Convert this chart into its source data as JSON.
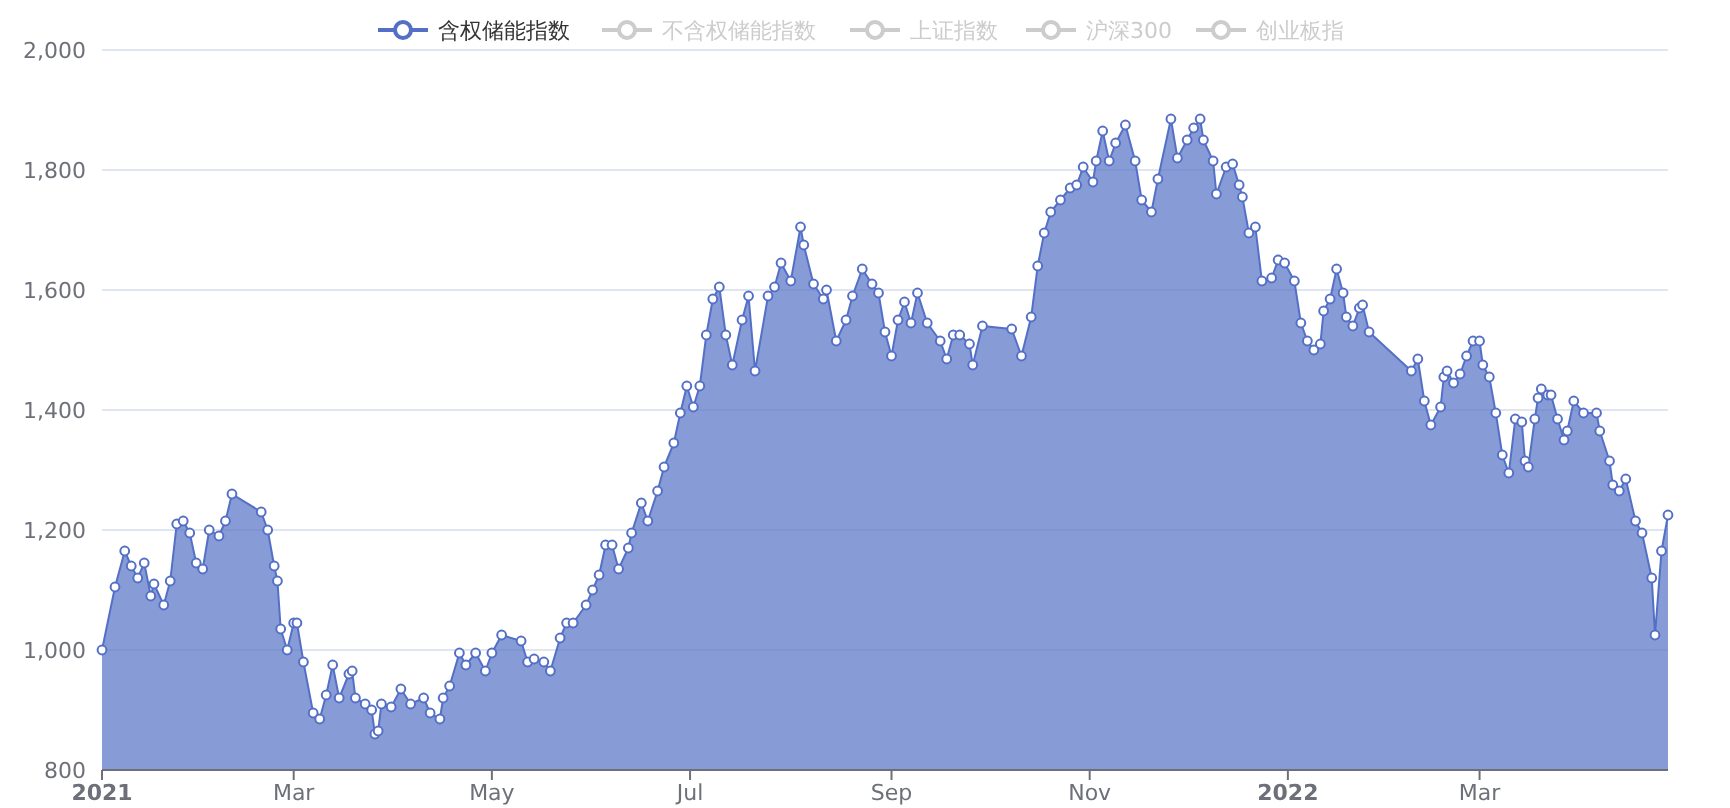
{
  "chart_data": {
    "type": "area",
    "legend": "top",
    "grid": "y",
    "marker": "circle",
    "line_style": "solid",
    "xlim": [
      "2021-01-01",
      "2022-04-28"
    ],
    "xticks": [
      {
        "value": "2021-01-01",
        "label": "2021"
      },
      {
        "value": "2021-03-01",
        "label": "Mar"
      },
      {
        "value": "2021-05-01",
        "label": "May"
      },
      {
        "value": "2021-07-01",
        "label": "Jul"
      },
      {
        "value": "2021-09-01",
        "label": "Sep"
      },
      {
        "value": "2021-11-01",
        "label": "Nov"
      },
      {
        "value": "2022-01-01",
        "label": "2022"
      },
      {
        "value": "2022-03-01",
        "label": "Mar"
      }
    ],
    "ylim": [
      800,
      2000
    ],
    "yticks": [
      {
        "value": 800,
        "label": "800"
      },
      {
        "value": 1000,
        "label": "1,000"
      },
      {
        "value": 1200,
        "label": "1,200"
      },
      {
        "value": 1400,
        "label": "1,400"
      },
      {
        "value": 1600,
        "label": "1,600"
      },
      {
        "value": 1800,
        "label": "1,800"
      },
      {
        "value": 2000,
        "label": "2,000"
      }
    ],
    "x": [
      "2021-01-01",
      "2021-01-05",
      "2021-01-08",
      "2021-01-10",
      "2021-01-12",
      "2021-01-14",
      "2021-01-16",
      "2021-01-17",
      "2021-01-20",
      "2021-01-22",
      "2021-01-24",
      "2021-01-26",
      "2021-01-28",
      "2021-01-30",
      "2021-02-01",
      "2021-02-03",
      "2021-02-06",
      "2021-02-08",
      "2021-02-10",
      "2021-02-19",
      "2021-02-21",
      "2021-02-23",
      "2021-02-24",
      "2021-02-25",
      "2021-02-27",
      "2021-03-01",
      "2021-03-02",
      "2021-03-04",
      "2021-03-07",
      "2021-03-09",
      "2021-03-11",
      "2021-03-13",
      "2021-03-15",
      "2021-03-18",
      "2021-03-19",
      "2021-03-20",
      "2021-03-23",
      "2021-03-25",
      "2021-03-26",
      "2021-03-27",
      "2021-03-28",
      "2021-03-31",
      "2021-04-03",
      "2021-04-06",
      "2021-04-10",
      "2021-04-12",
      "2021-04-15",
      "2021-04-16",
      "2021-04-18",
      "2021-04-21",
      "2021-04-23",
      "2021-04-26",
      "2021-04-29",
      "2021-05-01",
      "2021-05-04",
      "2021-05-10",
      "2021-05-12",
      "2021-05-14",
      "2021-05-17",
      "2021-05-19",
      "2021-05-22",
      "2021-05-24",
      "2021-05-26",
      "2021-05-30",
      "2021-06-01",
      "2021-06-03",
      "2021-06-05",
      "2021-06-07",
      "2021-06-09",
      "2021-06-12",
      "2021-06-13",
      "2021-06-16",
      "2021-06-18",
      "2021-06-21",
      "2021-06-23",
      "2021-06-26",
      "2021-06-28",
      "2021-06-30",
      "2021-07-02",
      "2021-07-04",
      "2021-07-06",
      "2021-07-08",
      "2021-07-10",
      "2021-07-12",
      "2021-07-14",
      "2021-07-17",
      "2021-07-19",
      "2021-07-21",
      "2021-07-25",
      "2021-07-27",
      "2021-07-29",
      "2021-08-01",
      "2021-08-04",
      "2021-08-05",
      "2021-08-08",
      "2021-08-11",
      "2021-08-12",
      "2021-08-15",
      "2021-08-18",
      "2021-08-20",
      "2021-08-23",
      "2021-08-26",
      "2021-08-28",
      "2021-08-30",
      "2021-09-01",
      "2021-09-03",
      "2021-09-05",
      "2021-09-07",
      "2021-09-09",
      "2021-09-12",
      "2021-09-16",
      "2021-09-18",
      "2021-09-20",
      "2021-09-22",
      "2021-09-25",
      "2021-09-26",
      "2021-09-29",
      "2021-10-08",
      "2021-10-11",
      "2021-10-14",
      "2021-10-16",
      "2021-10-18",
      "2021-10-20",
      "2021-10-23",
      "2021-10-26",
      "2021-10-28",
      "2021-10-30",
      "2021-11-02",
      "2021-11-03",
      "2021-11-05",
      "2021-11-07",
      "2021-11-09",
      "2021-11-12",
      "2021-11-15",
      "2021-11-17",
      "2021-11-20",
      "2021-11-22",
      "2021-11-26",
      "2021-11-28",
      "2021-12-01",
      "2021-12-03",
      "2021-12-05",
      "2021-12-06",
      "2021-12-09",
      "2021-12-10",
      "2021-12-13",
      "2021-12-15",
      "2021-12-17",
      "2021-12-18",
      "2021-12-20",
      "2021-12-22",
      "2021-12-24",
      "2021-12-27",
      "2021-12-29",
      "2021-12-31",
      "2022-01-03",
      "2022-01-05",
      "2022-01-07",
      "2022-01-09",
      "2022-01-11",
      "2022-01-12",
      "2022-01-14",
      "2022-01-16",
      "2022-01-18",
      "2022-01-19",
      "2022-01-21",
      "2022-01-23",
      "2022-01-24",
      "2022-01-26",
      "2022-02-08",
      "2022-02-10",
      "2022-02-12",
      "2022-02-14",
      "2022-02-17",
      "2022-02-18",
      "2022-02-19",
      "2022-02-21",
      "2022-02-23",
      "2022-02-25",
      "2022-02-27",
      "2022-03-01",
      "2022-03-02",
      "2022-03-04",
      "2022-03-06",
      "2022-03-08",
      "2022-03-10",
      "2022-03-12",
      "2022-03-14",
      "2022-03-15",
      "2022-03-16",
      "2022-03-18",
      "2022-03-19",
      "2022-03-20",
      "2022-03-22",
      "2022-03-23",
      "2022-03-25",
      "2022-03-27",
      "2022-03-28",
      "2022-03-30",
      "2022-04-02",
      "2022-04-06",
      "2022-04-07",
      "2022-04-10",
      "2022-04-11",
      "2022-04-13",
      "2022-04-15",
      "2022-04-18",
      "2022-04-20",
      "2022-04-23",
      "2022-04-24",
      "2022-04-26",
      "2022-04-28"
    ],
    "series": [
      {
        "name": "含权储能指数",
        "color": "#5470c6",
        "values": [
          1000,
          1105,
          1165,
          1140,
          1120,
          1145,
          1090,
          1110,
          1075,
          1115,
          1210,
          1215,
          1195,
          1145,
          1135,
          1200,
          1190,
          1215,
          1260,
          1230,
          1200,
          1140,
          1115,
          1035,
          1000,
          1045,
          1045,
          980,
          895,
          885,
          925,
          975,
          920,
          960,
          965,
          920,
          910,
          900,
          860,
          865,
          910,
          905,
          935,
          910,
          920,
          895,
          885,
          920,
          940,
          995,
          975,
          995,
          965,
          995,
          1025,
          1015,
          980,
          985,
          980,
          965,
          1020,
          1045,
          1045,
          1075,
          1100,
          1125,
          1175,
          1175,
          1135,
          1170,
          1195,
          1245,
          1215,
          1265,
          1305,
          1345,
          1395,
          1440,
          1405,
          1440,
          1525,
          1585,
          1605,
          1525,
          1475,
          1550,
          1590,
          1465,
          1590,
          1605,
          1645,
          1615,
          1705,
          1675,
          1610,
          1585,
          1600,
          1515,
          1550,
          1590,
          1635,
          1610,
          1595,
          1530,
          1490,
          1550,
          1580,
          1545,
          1595,
          1545,
          1515,
          1485,
          1525,
          1525,
          1510,
          1475,
          1540,
          1535,
          1490,
          1555,
          1640,
          1695,
          1730,
          1750,
          1770,
          1775,
          1805,
          1780,
          1815,
          1865,
          1815,
          1845,
          1875,
          1815,
          1750,
          1730,
          1785,
          1885,
          1820,
          1850,
          1870,
          1885,
          1850,
          1815,
          1760,
          1805,
          1810,
          1775,
          1755,
          1695,
          1705,
          1615,
          1620,
          1650,
          1645,
          1615,
          1545,
          1515,
          1500,
          1510,
          1565,
          1585,
          1635,
          1595,
          1555,
          1540,
          1570,
          1575,
          1530,
          1465,
          1485,
          1415,
          1375,
          1405,
          1455,
          1465,
          1445,
          1460,
          1490,
          1515,
          1515,
          1475,
          1455,
          1395,
          1325,
          1295,
          1385,
          1380,
          1315,
          1305,
          1385,
          1420,
          1435,
          1425,
          1425,
          1385,
          1350,
          1365,
          1415,
          1395,
          1395,
          1365,
          1315,
          1275,
          1265,
          1285,
          1215,
          1195,
          1120,
          1025,
          1165,
          1225
        ]
      },
      {
        "name": "不含权储能指数",
        "color": "#cccccc",
        "values": [
          null,
          null,
          null,
          null,
          null,
          null,
          null,
          null,
          null,
          null,
          null,
          null,
          null,
          null,
          null,
          null,
          null,
          null,
          null,
          null,
          null,
          null,
          null,
          null,
          null,
          null,
          null,
          null,
          null,
          null,
          null,
          null,
          null,
          null,
          null,
          null,
          null,
          null,
          null,
          null,
          null,
          null,
          null,
          null,
          null,
          null,
          null,
          null,
          null,
          null,
          null,
          null,
          null,
          null,
          null,
          null,
          null,
          null,
          null,
          null,
          null,
          null,
          null,
          null,
          null,
          null,
          null,
          null,
          null,
          null,
          null,
          null,
          null,
          null,
          null,
          null,
          null,
          null,
          null,
          null,
          null,
          null,
          null,
          null,
          null,
          null,
          null,
          null,
          null,
          null,
          null,
          null,
          null,
          null,
          null,
          null,
          null,
          null,
          null,
          null,
          null,
          null,
          null,
          null,
          null,
          null,
          null,
          null,
          null,
          null,
          null,
          null,
          null,
          null,
          null,
          null,
          null,
          null,
          null,
          null,
          null,
          null,
          null,
          null,
          null,
          null,
          null,
          null,
          null,
          null,
          null,
          null,
          null,
          null,
          null,
          null,
          null,
          null,
          null,
          null,
          null,
          null,
          null,
          null,
          null,
          null,
          null,
          null,
          null,
          null,
          null,
          null,
          null,
          null,
          null,
          null,
          null,
          null,
          null,
          null,
          null,
          null,
          null,
          null,
          null,
          null,
          null,
          null,
          null,
          null,
          null,
          null,
          null,
          null,
          null,
          null,
          null,
          null,
          null,
          null,
          null,
          null,
          null,
          null,
          null,
          null,
          null,
          null,
          null,
          null,
          null,
          null,
          null,
          null,
          null,
          null,
          null,
          null,
          null,
          null,
          null,
          null,
          null,
          null,
          null,
          null,
          null,
          null,
          null,
          null,
          null,
          null
        ]
      },
      {
        "name": "上证指数",
        "color": "#cccccc",
        "values": [
          null,
          null,
          null,
          null,
          null,
          null,
          null,
          null,
          null,
          null,
          null,
          null,
          null,
          null,
          null,
          null,
          null,
          null,
          null,
          null,
          null,
          null,
          null,
          null,
          null,
          null,
          null,
          null,
          null,
          null,
          null,
          null,
          null,
          null,
          null,
          null,
          null,
          null,
          null,
          null,
          null,
          null,
          null,
          null,
          null,
          null,
          null,
          null,
          null,
          null,
          null,
          null,
          null,
          null,
          null,
          null,
          null,
          null,
          null,
          null,
          null,
          null,
          null,
          null,
          null,
          null,
          null,
          null,
          null,
          null,
          null,
          null,
          null,
          null,
          null,
          null,
          null,
          null,
          null,
          null,
          null,
          null,
          null,
          null,
          null,
          null,
          null,
          null,
          null,
          null,
          null,
          null,
          null,
          null,
          null,
          null,
          null,
          null,
          null,
          null,
          null,
          null,
          null,
          null,
          null,
          null,
          null,
          null,
          null,
          null,
          null,
          null,
          null,
          null,
          null,
          null,
          null,
          null,
          null,
          null,
          null,
          null,
          null,
          null,
          null,
          null,
          null,
          null,
          null,
          null,
          null,
          null,
          null,
          null,
          null,
          null,
          null,
          null,
          null,
          null,
          null,
          null,
          null,
          null,
          null,
          null,
          null,
          null,
          null,
          null,
          null,
          null,
          null,
          null,
          null,
          null,
          null,
          null,
          null,
          null,
          null,
          null,
          null,
          null,
          null,
          null,
          null,
          null,
          null,
          null,
          null,
          null,
          null,
          null,
          null,
          null,
          null,
          null,
          null,
          null,
          null,
          null,
          null,
          null,
          null,
          null,
          null,
          null,
          null,
          null,
          null,
          null,
          null,
          null,
          null,
          null,
          null,
          null,
          null,
          null,
          null,
          null,
          null,
          null,
          null,
          null,
          null,
          null,
          null,
          null,
          null,
          null
        ]
      },
      {
        "name": "沪深300",
        "color": "#cccccc",
        "values": [
          null,
          null,
          null,
          null,
          null,
          null,
          null,
          null,
          null,
          null,
          null,
          null,
          null,
          null,
          null,
          null,
          null,
          null,
          null,
          null,
          null,
          null,
          null,
          null,
          null,
          null,
          null,
          null,
          null,
          null,
          null,
          null,
          null,
          null,
          null,
          null,
          null,
          null,
          null,
          null,
          null,
          null,
          null,
          null,
          null,
          null,
          null,
          null,
          null,
          null,
          null,
          null,
          null,
          null,
          null,
          null,
          null,
          null,
          null,
          null,
          null,
          null,
          null,
          null,
          null,
          null,
          null,
          null,
          null,
          null,
          null,
          null,
          null,
          null,
          null,
          null,
          null,
          null,
          null,
          null,
          null,
          null,
          null,
          null,
          null,
          null,
          null,
          null,
          null,
          null,
          null,
          null,
          null,
          null,
          null,
          null,
          null,
          null,
          null,
          null,
          null,
          null,
          null,
          null,
          null,
          null,
          null,
          null,
          null,
          null,
          null,
          null,
          null,
          null,
          null,
          null,
          null,
          null,
          null,
          null,
          null,
          null,
          null,
          null,
          null,
          null,
          null,
          null,
          null,
          null,
          null,
          null,
          null,
          null,
          null,
          null,
          null,
          null,
          null,
          null,
          null,
          null,
          null,
          null,
          null,
          null,
          null,
          null,
          null,
          null,
          null,
          null,
          null,
          null,
          null,
          null,
          null,
          null,
          null,
          null,
          null,
          null,
          null,
          null,
          null,
          null,
          null,
          null,
          null,
          null,
          null,
          null,
          null,
          null,
          null,
          null,
          null,
          null,
          null,
          null,
          null,
          null,
          null,
          null,
          null,
          null,
          null,
          null,
          null,
          null,
          null,
          null,
          null,
          null,
          null,
          null,
          null,
          null,
          null,
          null,
          null,
          null,
          null,
          null,
          null,
          null,
          null,
          null,
          null,
          null,
          null,
          null
        ]
      },
      {
        "name": "创业板指",
        "color": "#cccccc",
        "values": [
          null,
          null,
          null,
          null,
          null,
          null,
          null,
          null,
          null,
          null,
          null,
          null,
          null,
          null,
          null,
          null,
          null,
          null,
          null,
          null,
          null,
          null,
          null,
          null,
          null,
          null,
          null,
          null,
          null,
          null,
          null,
          null,
          null,
          null,
          null,
          null,
          null,
          null,
          null,
          null,
          null,
          null,
          null,
          null,
          null,
          null,
          null,
          null,
          null,
          null,
          null,
          null,
          null,
          null,
          null,
          null,
          null,
          null,
          null,
          null,
          null,
          null,
          null,
          null,
          null,
          null,
          null,
          null,
          null,
          null,
          null,
          null,
          null,
          null,
          null,
          null,
          null,
          null,
          null,
          null,
          null,
          null,
          null,
          null,
          null,
          null,
          null,
          null,
          null,
          null,
          null,
          null,
          null,
          null,
          null,
          null,
          null,
          null,
          null,
          null,
          null,
          null,
          null,
          null,
          null,
          null,
          null,
          null,
          null,
          null,
          null,
          null,
          null,
          null,
          null,
          null,
          null,
          null,
          null,
          null,
          null,
          null,
          null,
          null,
          null,
          null,
          null,
          null,
          null,
          null,
          null,
          null,
          null,
          null,
          null,
          null,
          null,
          null,
          null,
          null,
          null,
          null,
          null,
          null,
          null,
          null,
          null,
          null,
          null,
          null,
          null,
          null,
          null,
          null,
          null,
          null,
          null,
          null,
          null,
          null,
          null,
          null,
          null,
          null,
          null,
          null,
          null,
          null,
          null,
          null,
          null,
          null,
          null,
          null,
          null,
          null,
          null,
          null,
          null,
          null,
          null,
          null,
          null,
          null,
          null,
          null,
          null,
          null,
          null,
          null,
          null,
          null,
          null,
          null,
          null,
          null,
          null,
          null,
          null,
          null,
          null,
          null,
          null,
          null,
          null,
          null,
          null,
          null,
          null,
          null,
          null,
          null
        ]
      }
    ]
  }
}
